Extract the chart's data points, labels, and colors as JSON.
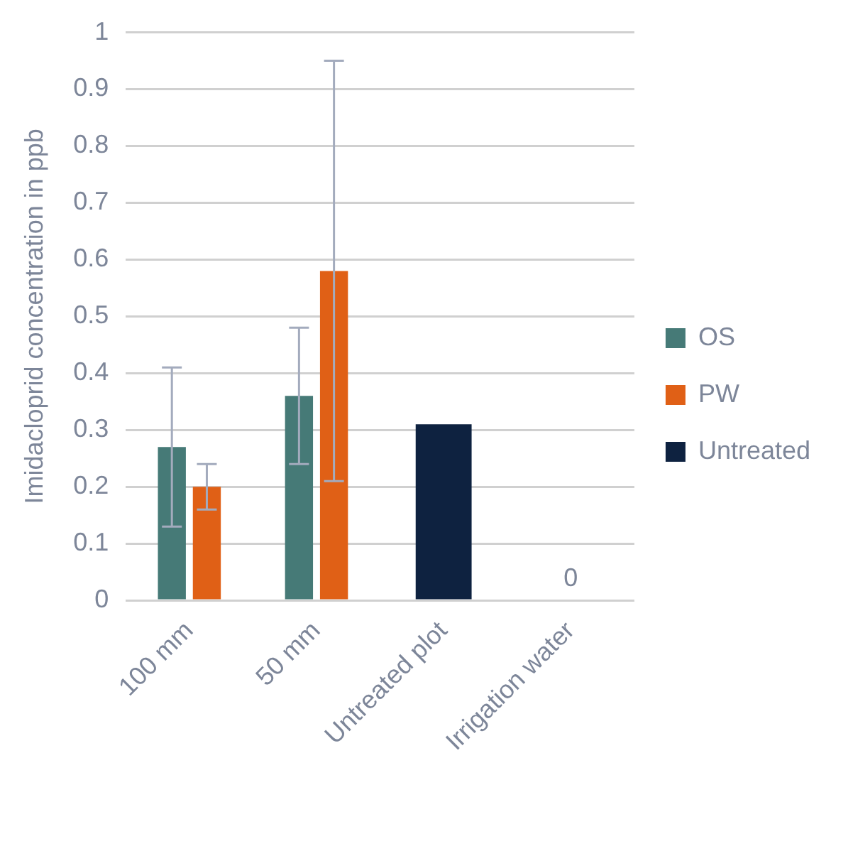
{
  "chart_data": {
    "type": "bar",
    "ylabel": "Imidacloprid concentration in ppb",
    "categories": [
      "100 mm",
      "50 mm",
      "Untreated plot",
      "Irrigation water"
    ],
    "series": [
      {
        "name": "OS",
        "color": "#467a77",
        "values": [
          0.27,
          0.36,
          null,
          null
        ],
        "errors": [
          [
            0.13,
            0.41
          ],
          [
            0.24,
            0.48
          ],
          null,
          null
        ]
      },
      {
        "name": "PW",
        "color": "#e06016",
        "values": [
          0.2,
          0.58,
          null,
          null
        ],
        "errors": [
          [
            0.16,
            0.24
          ],
          [
            0.21,
            0.95
          ],
          null,
          null
        ]
      },
      {
        "name": "Untreated",
        "color": "#0e2240",
        "values": [
          null,
          null,
          0.31,
          0
        ],
        "value_labels": [
          null,
          null,
          null,
          "0"
        ]
      }
    ],
    "ylim": [
      0,
      1
    ],
    "yticks": [
      0,
      0.1,
      0.2,
      0.3,
      0.4,
      0.5,
      0.6,
      0.7,
      0.8,
      0.9,
      1
    ],
    "grid": "y",
    "legend": "right"
  }
}
